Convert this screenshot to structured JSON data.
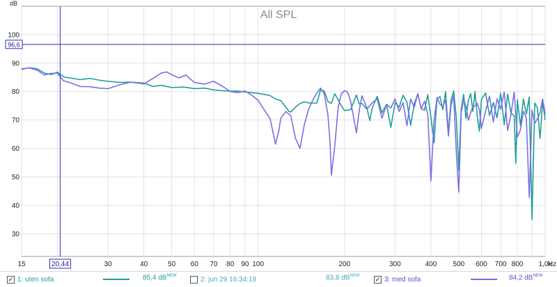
{
  "chart_data": {
    "type": "line",
    "title": "All SPL",
    "ylabel": "dB",
    "xunit": "Hz",
    "xscale": "log",
    "xlim": [
      15,
      1000
    ],
    "ylim": [
      22,
      110
    ],
    "grid": true,
    "yticks": [
      30,
      40,
      50,
      60,
      70,
      80,
      90,
      100
    ],
    "xticks": [
      {
        "v": 15,
        "label": "15"
      },
      {
        "v": 20,
        "label": "20"
      },
      {
        "v": 30,
        "label": "30"
      },
      {
        "v": 40,
        "label": "40"
      },
      {
        "v": 50,
        "label": "50"
      },
      {
        "v": 60,
        "label": "60"
      },
      {
        "v": 70,
        "label": "70"
      },
      {
        "v": 80,
        "label": "80"
      },
      {
        "v": 90,
        "label": "90"
      },
      {
        "v": 100,
        "label": "100"
      },
      {
        "v": 200,
        "label": "200"
      },
      {
        "v": 300,
        "label": "300"
      },
      {
        "v": 400,
        "label": "400"
      },
      {
        "v": 500,
        "label": "500"
      },
      {
        "v": 600,
        "label": "600"
      },
      {
        "v": 700,
        "label": "700"
      },
      {
        "v": 800,
        "label": "800"
      },
      {
        "v": 900,
        "label": ""
      },
      {
        "v": 1000,
        "label": "1,0k"
      }
    ],
    "cursor": {
      "x": 20.44,
      "y": 96.6,
      "x_label": "20,44",
      "y_label": "96,6"
    },
    "series": [
      {
        "name": "1: uten sofa",
        "color": "#1e9e96",
        "points": [
          [
            15,
            87.8
          ],
          [
            16,
            88.4
          ],
          [
            17,
            88.0
          ],
          [
            18,
            86.5
          ],
          [
            19,
            86.0
          ],
          [
            20,
            86.8
          ],
          [
            21,
            85.2
          ],
          [
            22,
            84.8
          ],
          [
            24,
            84.2
          ],
          [
            26,
            84.6
          ],
          [
            28,
            84.0
          ],
          [
            30,
            83.6
          ],
          [
            33,
            83.2
          ],
          [
            36,
            83.3
          ],
          [
            40,
            83.0
          ],
          [
            43,
            81.8
          ],
          [
            46,
            82.2
          ],
          [
            50,
            81.4
          ],
          [
            55,
            81.6
          ],
          [
            60,
            81.0
          ],
          [
            65,
            81.2
          ],
          [
            70,
            80.6
          ],
          [
            75,
            80.3
          ],
          [
            80,
            80.1
          ],
          [
            85,
            80.2
          ],
          [
            90,
            79.8
          ],
          [
            95,
            79.6
          ],
          [
            100,
            79.4
          ],
          [
            110,
            78.6
          ],
          [
            115,
            77.4
          ],
          [
            120,
            76.8
          ],
          [
            125,
            74.5
          ],
          [
            128,
            73.0
          ],
          [
            130,
            72.8
          ],
          [
            135,
            74.5
          ],
          [
            140,
            75.8
          ],
          [
            145,
            76.4
          ],
          [
            150,
            76.0
          ],
          [
            160,
            75.9
          ],
          [
            165,
            80.6
          ],
          [
            170,
            80.2
          ],
          [
            175,
            76.5
          ],
          [
            180,
            75.8
          ],
          [
            185,
            79.2
          ],
          [
            190,
            77.2
          ],
          [
            195,
            75.0
          ],
          [
            200,
            73.3
          ],
          [
            210,
            73.6
          ],
          [
            220,
            78.8
          ],
          [
            225,
            75.6
          ],
          [
            230,
            75.8
          ],
          [
            240,
            73.6
          ],
          [
            245,
            69.8
          ],
          [
            250,
            74.4
          ],
          [
            260,
            78.3
          ],
          [
            270,
            72.5
          ],
          [
            280,
            75.5
          ],
          [
            290,
            67.4
          ],
          [
            300,
            76.0
          ],
          [
            310,
            74.5
          ],
          [
            320,
            78.7
          ],
          [
            330,
            76.2
          ],
          [
            340,
            68.1
          ],
          [
            350,
            75.7
          ],
          [
            360,
            79.2
          ],
          [
            370,
            74.0
          ],
          [
            380,
            73.4
          ],
          [
            390,
            78.9
          ],
          [
            400,
            71.0
          ],
          [
            410,
            62.0
          ],
          [
            420,
            77.5
          ],
          [
            430,
            78.2
          ],
          [
            440,
            73.6
          ],
          [
            450,
            80.0
          ],
          [
            460,
            65.5
          ],
          [
            470,
            76.8
          ],
          [
            480,
            80.2
          ],
          [
            490,
            71.0
          ],
          [
            500,
            52.2
          ],
          [
            510,
            73.9
          ],
          [
            520,
            79.0
          ],
          [
            530,
            70.5
          ],
          [
            540,
            76.9
          ],
          [
            550,
            79.3
          ],
          [
            560,
            73.0
          ],
          [
            570,
            80.0
          ],
          [
            580,
            71.4
          ],
          [
            590,
            66.0
          ],
          [
            600,
            77.3
          ],
          [
            620,
            79.5
          ],
          [
            640,
            71.6
          ],
          [
            660,
            76.1
          ],
          [
            680,
            70.8
          ],
          [
            700,
            79.4
          ],
          [
            720,
            68.3
          ],
          [
            740,
            79.1
          ],
          [
            760,
            72.3
          ],
          [
            780,
            71.5
          ],
          [
            790,
            54.8
          ],
          [
            800,
            77.1
          ],
          [
            820,
            68.1
          ],
          [
            840,
            77.4
          ],
          [
            860,
            72.0
          ],
          [
            880,
            78.1
          ],
          [
            900,
            35.0
          ],
          [
            920,
            76.0
          ],
          [
            940,
            74.2
          ],
          [
            960,
            63.5
          ],
          [
            980,
            76.5
          ],
          [
            1000,
            70.0
          ]
        ]
      },
      {
        "name": "3: med sofa",
        "color": "#7a6ee6",
        "points": [
          [
            15,
            88.0
          ],
          [
            16,
            88.3
          ],
          [
            17,
            87.5
          ],
          [
            18,
            85.8
          ],
          [
            19,
            86.4
          ],
          [
            20,
            86.4
          ],
          [
            21,
            83.8
          ],
          [
            22,
            83.2
          ],
          [
            24,
            81.8
          ],
          [
            26,
            81.7
          ],
          [
            28,
            81.2
          ],
          [
            30,
            81.0
          ],
          [
            33,
            82.4
          ],
          [
            36,
            83.3
          ],
          [
            40,
            82.7
          ],
          [
            43,
            84.6
          ],
          [
            46,
            86.5
          ],
          [
            48,
            86.9
          ],
          [
            50,
            85.9
          ],
          [
            53,
            84.8
          ],
          [
            56,
            85.8
          ],
          [
            60,
            83.2
          ],
          [
            65,
            82.6
          ],
          [
            70,
            83.6
          ],
          [
            75,
            81.9
          ],
          [
            80,
            80.0
          ],
          [
            85,
            79.6
          ],
          [
            90,
            80.2
          ],
          [
            95,
            78.7
          ],
          [
            100,
            76.9
          ],
          [
            105,
            73.6
          ],
          [
            110,
            70.5
          ],
          [
            112,
            67.0
          ],
          [
            115,
            61.5
          ],
          [
            118,
            66.0
          ],
          [
            120,
            70.6
          ],
          [
            125,
            73.0
          ],
          [
            130,
            71.4
          ],
          [
            135,
            63.5
          ],
          [
            140,
            60.0
          ],
          [
            145,
            68.5
          ],
          [
            150,
            73.8
          ],
          [
            155,
            77.0
          ],
          [
            160,
            79.4
          ],
          [
            165,
            81.2
          ],
          [
            170,
            79.2
          ],
          [
            175,
            72.0
          ],
          [
            178,
            62.5
          ],
          [
            180,
            50.6
          ],
          [
            185,
            61.0
          ],
          [
            190,
            74.4
          ],
          [
            195,
            79.2
          ],
          [
            200,
            80.3
          ],
          [
            205,
            79.8
          ],
          [
            210,
            76.6
          ],
          [
            215,
            71.0
          ],
          [
            220,
            65.5
          ],
          [
            225,
            73.2
          ],
          [
            230,
            78.5
          ],
          [
            240,
            74.0
          ],
          [
            250,
            76.1
          ],
          [
            260,
            77.4
          ],
          [
            270,
            70.6
          ],
          [
            280,
            75.5
          ],
          [
            290,
            74.2
          ],
          [
            300,
            77.4
          ],
          [
            310,
            73.0
          ],
          [
            320,
            76.1
          ],
          [
            330,
            68.0
          ],
          [
            340,
            77.4
          ],
          [
            350,
            74.4
          ],
          [
            360,
            79.3
          ],
          [
            370,
            73.9
          ],
          [
            380,
            76.6
          ],
          [
            390,
            72.0
          ],
          [
            400,
            48.5
          ],
          [
            410,
            69.9
          ],
          [
            420,
            77.9
          ],
          [
            430,
            75.5
          ],
          [
            440,
            74.8
          ],
          [
            450,
            77.0
          ],
          [
            460,
            64.3
          ],
          [
            470,
            75.2
          ],
          [
            480,
            78.5
          ],
          [
            490,
            59.0
          ],
          [
            500,
            44.6
          ],
          [
            510,
            72.5
          ],
          [
            520,
            77.4
          ],
          [
            530,
            74.8
          ],
          [
            540,
            69.9
          ],
          [
            550,
            72.5
          ],
          [
            560,
            74.8
          ],
          [
            570,
            75.0
          ],
          [
            580,
            75.8
          ],
          [
            590,
            73.6
          ],
          [
            600,
            67.0
          ],
          [
            620,
            73.1
          ],
          [
            640,
            78.4
          ],
          [
            660,
            69.3
          ],
          [
            680,
            77.5
          ],
          [
            700,
            73.8
          ],
          [
            720,
            79.8
          ],
          [
            740,
            66.3
          ],
          [
            760,
            72.0
          ],
          [
            780,
            79.8
          ],
          [
            800,
            64.0
          ],
          [
            820,
            66.5
          ],
          [
            840,
            73.1
          ],
          [
            860,
            70.6
          ],
          [
            880,
            42.8
          ],
          [
            900,
            73.5
          ],
          [
            920,
            68.8
          ],
          [
            940,
            70.5
          ],
          [
            960,
            72.6
          ],
          [
            980,
            77.4
          ],
          [
            1000,
            72.0
          ]
        ]
      }
    ]
  },
  "legend": [
    {
      "checked": true,
      "label": "1: uten sofa",
      "value": "85,4 dB",
      "sup": "NEW",
      "color": "#1e9e96",
      "label_color": "#1e9e96"
    },
    {
      "checked": false,
      "label": "2: jun 29 16:34:19",
      "value": "83,8 dB",
      "sup": "NEW",
      "color": "",
      "label_color": "#4aa6c8"
    },
    {
      "checked": true,
      "label": "3: med sofa",
      "value": "84,2 dB",
      "sup": "NEW",
      "color": "#7a6ee6",
      "label_color": "#5a4ed0"
    }
  ],
  "checkmark": "✓"
}
